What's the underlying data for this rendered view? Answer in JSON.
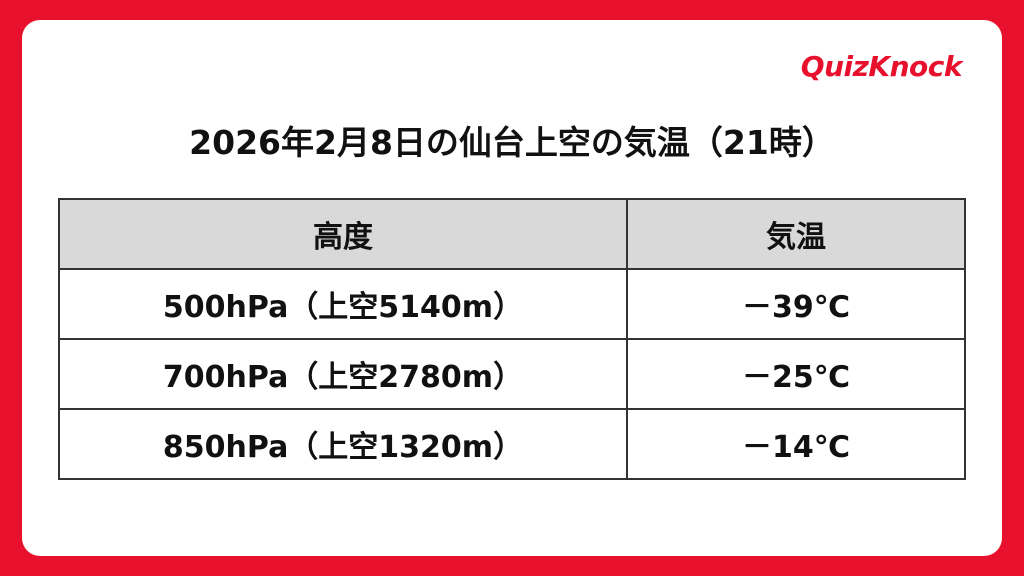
{
  "header": {
    "logo": "QuizKnock"
  },
  "title": "2026年2月8日の仙台上空の気温（21時）",
  "table": {
    "columns": [
      "高度",
      "気温"
    ],
    "rows": [
      [
        "500hPa（上空5140m）",
        "－39℃"
      ],
      [
        "700hPa（上空2780m）",
        "－25℃"
      ],
      [
        "850hPa（上空1320m）",
        "－14℃"
      ]
    ]
  }
}
